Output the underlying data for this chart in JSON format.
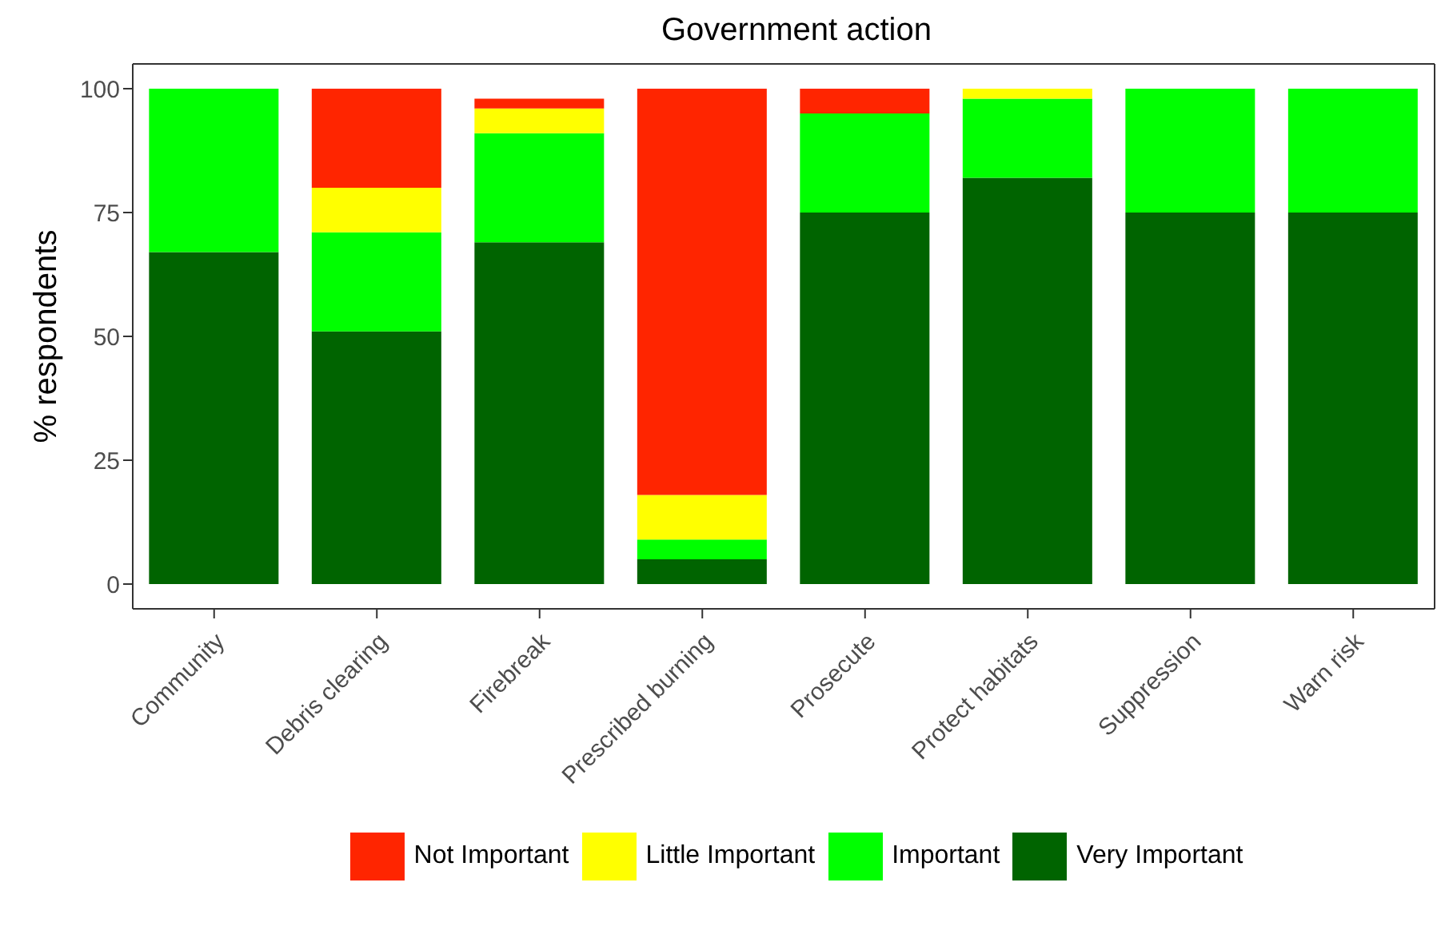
{
  "chart_data": {
    "type": "bar",
    "title": "Government action",
    "ylabel": "% respondents",
    "categories": [
      "Community",
      "Debris clearing",
      "Firebreak",
      "Prescribed burning",
      "Prosecute",
      "Protect habitats",
      "Suppression",
      "Warn risk"
    ],
    "series": [
      {
        "name": "Very Important",
        "color": "#006400",
        "values": [
          67,
          51,
          69,
          5,
          75,
          82,
          75,
          75
        ]
      },
      {
        "name": "Important",
        "color": "#00ff00",
        "values": [
          33,
          20,
          22,
          4,
          20,
          16,
          25,
          25
        ]
      },
      {
        "name": "Little Important",
        "color": "#ffff00",
        "values": [
          0,
          9,
          5,
          9,
          0,
          2,
          0,
          0
        ]
      },
      {
        "name": "Not Important",
        "color": "#ff2500",
        "values": [
          0,
          20,
          2,
          82,
          5,
          0,
          0,
          0
        ]
      }
    ],
    "stacked": true,
    "ylim": [
      -5,
      105
    ],
    "yticks": [
      0,
      25,
      50,
      75,
      100
    ],
    "grid": false,
    "legend": "bottom"
  }
}
